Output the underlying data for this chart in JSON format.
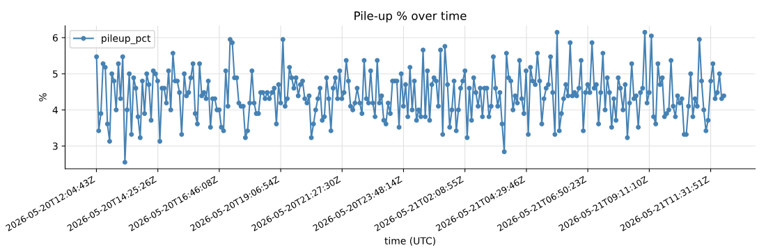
{
  "chart_data": {
    "type": "line",
    "title": "Pile-up % over time",
    "xlabel": "time (UTC)",
    "ylabel": "%",
    "x": [
      "2026-05-20T12:05",
      "2026-05-20T12:10",
      "2026-05-20T12:15",
      "2026-05-20T12:20",
      "2026-05-20T12:25",
      "2026-05-20T12:30",
      "2026-05-20T12:35",
      "2026-05-20T12:40",
      "2026-05-20T12:45",
      "2026-05-20T12:50",
      "2026-05-20T12:55",
      "2026-05-20T13:00",
      "2026-05-20T13:05",
      "2026-05-20T13:10",
      "2026-05-20T13:15",
      "2026-05-20T13:20",
      "2026-05-20T13:25",
      "2026-05-20T13:30",
      "2026-05-20T13:35",
      "2026-05-20T13:40",
      "2026-05-20T13:45",
      "2026-05-20T13:50",
      "2026-05-20T13:55",
      "2026-05-20T14:00",
      "2026-05-20T14:05",
      "2026-05-20T14:10",
      "2026-05-20T14:15",
      "2026-05-20T14:20",
      "2026-05-20T14:25",
      "2026-05-20T14:30",
      "2026-05-20T14:35",
      "2026-05-20T14:40",
      "2026-05-20T14:45",
      "2026-05-20T14:50",
      "2026-05-20T14:55",
      "2026-05-20T15:00",
      "2026-05-20T15:05",
      "2026-05-20T15:10",
      "2026-05-20T15:15",
      "2026-05-20T15:20",
      "2026-05-20T15:26",
      "2026-05-20T15:31",
      "2026-05-20T15:36",
      "2026-05-20T15:41",
      "2026-05-20T15:46",
      "2026-05-20T15:51",
      "2026-05-20T15:56",
      "2026-05-20T16:01",
      "2026-05-20T16:06",
      "2026-05-20T16:11",
      "2026-05-20T16:16",
      "2026-05-20T16:21",
      "2026-05-20T16:26",
      "2026-05-20T16:31",
      "2026-05-20T16:36",
      "2026-05-20T16:41",
      "2026-05-20T16:46",
      "2026-05-20T16:51",
      "2026-05-20T16:56",
      "2026-05-20T17:01",
      "2026-05-20T17:06",
      "2026-05-20T17:11",
      "2026-05-20T17:16",
      "2026-05-20T17:21",
      "2026-05-20T17:26",
      "2026-05-20T17:31",
      "2026-05-20T17:36",
      "2026-05-20T17:41",
      "2026-05-20T17:46",
      "2026-05-20T17:51",
      "2026-05-20T17:56",
      "2026-05-20T18:01",
      "2026-05-20T18:06",
      "2026-05-20T18:11",
      "2026-05-20T18:16",
      "2026-05-20T18:21",
      "2026-05-20T18:26",
      "2026-05-20T18:31",
      "2026-05-20T18:36",
      "2026-05-20T18:41",
      "2026-05-20T18:47",
      "2026-05-20T18:52",
      "2026-05-20T18:57",
      "2026-05-20T19:02",
      "2026-05-20T19:07",
      "2026-05-20T19:12",
      "2026-05-20T19:17",
      "2026-05-20T19:22",
      "2026-05-20T19:27",
      "2026-05-20T19:32",
      "2026-05-20T19:37",
      "2026-05-20T19:42",
      "2026-05-20T19:47",
      "2026-05-20T19:52",
      "2026-05-20T19:57",
      "2026-05-20T20:02",
      "2026-05-20T20:07",
      "2026-05-20T20:12",
      "2026-05-20T20:17",
      "2026-05-20T20:22",
      "2026-05-20T20:27",
      "2026-05-20T20:32",
      "2026-05-20T20:37",
      "2026-05-20T20:42",
      "2026-05-20T20:47",
      "2026-05-20T20:52",
      "2026-05-20T20:57",
      "2026-05-20T21:02",
      "2026-05-20T21:07",
      "2026-05-20T21:12",
      "2026-05-20T21:17",
      "2026-05-20T21:22",
      "2026-05-20T21:27",
      "2026-05-20T21:32",
      "2026-05-20T21:37",
      "2026-05-20T21:42",
      "2026-05-20T21:47",
      "2026-05-20T21:52",
      "2026-05-20T21:57",
      "2026-05-20T22:02",
      "2026-05-20T22:08",
      "2026-05-20T22:13",
      "2026-05-20T22:18",
      "2026-05-20T22:23",
      "2026-05-20T22:28",
      "2026-05-20T22:33",
      "2026-05-20T22:38",
      "2026-05-20T22:43",
      "2026-05-20T22:48",
      "2026-05-20T22:53",
      "2026-05-20T22:58",
      "2026-05-20T23:03",
      "2026-05-20T23:08",
      "2026-05-20T23:13",
      "2026-05-20T23:18",
      "2026-05-20T23:23",
      "2026-05-20T23:28",
      "2026-05-20T23:33",
      "2026-05-20T23:38",
      "2026-05-20T23:43",
      "2026-05-20T23:48",
      "2026-05-20T23:53",
      "2026-05-20T23:58",
      "2026-05-21T00:03",
      "2026-05-21T00:08",
      "2026-05-21T00:13",
      "2026-05-21T00:18",
      "2026-05-21T00:23",
      "2026-05-21T00:28",
      "2026-05-21T00:33",
      "2026-05-21T00:38",
      "2026-05-21T00:43",
      "2026-05-21T00:48",
      "2026-05-21T00:53",
      "2026-05-21T00:58",
      "2026-05-21T01:03",
      "2026-05-21T01:08",
      "2026-05-21T01:13",
      "2026-05-21T01:18",
      "2026-05-21T01:23",
      "2026-05-21T01:29",
      "2026-05-21T01:34",
      "2026-05-21T01:39",
      "2026-05-21T01:44",
      "2026-05-21T01:49",
      "2026-05-21T01:54",
      "2026-05-21T01:59",
      "2026-05-21T02:04",
      "2026-05-21T02:09",
      "2026-05-21T02:14",
      "2026-05-21T02:19",
      "2026-05-21T02:24",
      "2026-05-21T02:29",
      "2026-05-21T02:34",
      "2026-05-21T02:39",
      "2026-05-21T02:44",
      "2026-05-21T02:49",
      "2026-05-21T02:54",
      "2026-05-21T02:59",
      "2026-05-21T03:04",
      "2026-05-21T03:09",
      "2026-05-21T03:14",
      "2026-05-21T03:19",
      "2026-05-21T03:24",
      "2026-05-21T03:29",
      "2026-05-21T03:34",
      "2026-05-21T03:39",
      "2026-05-21T03:44",
      "2026-05-21T03:49",
      "2026-05-21T03:54",
      "2026-05-21T03:59",
      "2026-05-21T04:04",
      "2026-05-21T04:09",
      "2026-05-21T04:14",
      "2026-05-21T04:19",
      "2026-05-21T04:24",
      "2026-05-21T04:29",
      "2026-05-21T04:34",
      "2026-05-21T04:39",
      "2026-05-21T04:44",
      "2026-05-21T04:50",
      "2026-05-21T04:55",
      "2026-05-21T05:00",
      "2026-05-21T05:05",
      "2026-05-21T05:10",
      "2026-05-21T05:15",
      "2026-05-21T05:20",
      "2026-05-21T05:25",
      "2026-05-21T05:30",
      "2026-05-21T05:35",
      "2026-05-21T05:40",
      "2026-05-21T05:45",
      "2026-05-21T05:50",
      "2026-05-21T05:55",
      "2026-05-21T06:00",
      "2026-05-21T06:05",
      "2026-05-21T06:10",
      "2026-05-21T06:15",
      "2026-05-21T06:20",
      "2026-05-21T06:25",
      "2026-05-21T06:30",
      "2026-05-21T06:35",
      "2026-05-21T06:40",
      "2026-05-21T06:45",
      "2026-05-21T06:50",
      "2026-05-21T06:55",
      "2026-05-21T07:00",
      "2026-05-21T07:05",
      "2026-05-21T07:10",
      "2026-05-21T07:15",
      "2026-05-21T07:20",
      "2026-05-21T07:25",
      "2026-05-21T07:30",
      "2026-05-21T07:35",
      "2026-05-21T07:40",
      "2026-05-21T07:45",
      "2026-05-21T07:50",
      "2026-05-21T07:55",
      "2026-05-21T08:00",
      "2026-05-21T08:05",
      "2026-05-21T08:11",
      "2026-05-21T08:16",
      "2026-05-21T08:21",
      "2026-05-21T08:26",
      "2026-05-21T08:31",
      "2026-05-21T08:36",
      "2026-05-21T08:41",
      "2026-05-21T08:46",
      "2026-05-21T08:51",
      "2026-05-21T08:56",
      "2026-05-21T09:01",
      "2026-05-21T09:06",
      "2026-05-21T09:11",
      "2026-05-21T09:16",
      "2026-05-21T09:21",
      "2026-05-21T09:26",
      "2026-05-21T09:31",
      "2026-05-21T09:36",
      "2026-05-21T09:41",
      "2026-05-21T09:46",
      "2026-05-21T09:51",
      "2026-05-21T09:56",
      "2026-05-21T10:01",
      "2026-05-21T10:06",
      "2026-05-21T10:11",
      "2026-05-21T10:16",
      "2026-05-21T10:21",
      "2026-05-21T10:26",
      "2026-05-21T10:31",
      "2026-05-21T10:36",
      "2026-05-21T10:41",
      "2026-05-21T10:46",
      "2026-05-21T10:51",
      "2026-05-21T10:56",
      "2026-05-21T11:01",
      "2026-05-21T11:06",
      "2026-05-21T11:11",
      "2026-05-21T11:16",
      "2026-05-21T11:21",
      "2026-05-21T11:26",
      "2026-05-21T11:32",
      "2026-05-21T11:37",
      "2026-05-21T11:42",
      "2026-05-21T11:47",
      "2026-05-21T11:52",
      "2026-05-21T11:57",
      "2026-05-21T12:02"
    ],
    "series": [
      {
        "name": "pileup_pct",
        "color": "#4682b4",
        "values": [
          5.47,
          3.42,
          3.9,
          5.28,
          5.18,
          3.61,
          3.13,
          5.0,
          4.8,
          4.0,
          5.28,
          4.31,
          5.47,
          2.55,
          4.0,
          5.0,
          3.32,
          4.89,
          4.6,
          3.81,
          3.23,
          4.8,
          3.9,
          5.0,
          4.7,
          3.71,
          5.08,
          5.0,
          4.8,
          3.13,
          4.6,
          4.6,
          4.19,
          5.08,
          4.0,
          5.57,
          4.8,
          4.8,
          4.48,
          3.32,
          5.0,
          4.39,
          4.48,
          4.89,
          5.28,
          3.9,
          3.61,
          5.28,
          4.39,
          4.48,
          4.31,
          4.8,
          3.52,
          4.31,
          4.31,
          4.0,
          4.0,
          3.52,
          3.42,
          5.08,
          4.1,
          5.95,
          5.86,
          4.89,
          4.89,
          4.19,
          4.1,
          4.1,
          3.23,
          3.42,
          4.19,
          5.08,
          4.19,
          3.9,
          3.9,
          4.48,
          4.48,
          4.31,
          4.48,
          4.31,
          4.48,
          4.6,
          3.61,
          4.7,
          4.19,
          5.95,
          4.1,
          4.31,
          5.18,
          4.89,
          4.6,
          4.89,
          4.39,
          4.7,
          4.8,
          4.31,
          4.19,
          4.39,
          3.23,
          3.61,
          4.0,
          4.31,
          4.6,
          3.71,
          3.81,
          4.89,
          4.31,
          3.42,
          4.6,
          4.89,
          4.31,
          5.08,
          4.31,
          4.48,
          5.37,
          4.8,
          4.1,
          4.0,
          4.19,
          4.6,
          4.19,
          3.9,
          5.37,
          4.31,
          4.19,
          5.08,
          4.19,
          3.81,
          5.37,
          4.19,
          4.39,
          3.71,
          3.61,
          4.19,
          3.9,
          4.8,
          4.8,
          4.8,
          3.52,
          5.0,
          4.1,
          4.7,
          3.81,
          5.18,
          4.0,
          4.8,
          3.71,
          4.0,
          3.81,
          5.66,
          3.81,
          5.08,
          3.71,
          4.7,
          4.89,
          4.8,
          4.1,
          5.66,
          3.32,
          5.76,
          4.7,
          3.52,
          4.0,
          4.8,
          3.42,
          4.0,
          4.6,
          4.8,
          5.08,
          3.23,
          4.6,
          3.71,
          4.89,
          4.48,
          4.1,
          4.6,
          3.81,
          4.6,
          4.6,
          3.81,
          4.1,
          5.47,
          4.6,
          4.1,
          4.48,
          3.61,
          2.84,
          5.57,
          4.89,
          4.8,
          4.0,
          4.39,
          4.19,
          5.37,
          4.31,
          3.9,
          5.08,
          3.32,
          5.18,
          4.8,
          4.7,
          5.57,
          4.8,
          3.61,
          4.31,
          4.6,
          4.7,
          5.47,
          4.48,
          3.32,
          6.15,
          3.42,
          3.9,
          4.31,
          4.7,
          4.39,
          5.86,
          4.39,
          4.48,
          4.39,
          4.6,
          5.37,
          3.42,
          4.48,
          4.7,
          4.48,
          5.86,
          4.6,
          4.7,
          3.61,
          4.48,
          5.57,
          4.0,
          4.89,
          4.48,
          3.52,
          4.31,
          3.71,
          4.89,
          4.6,
          4.0,
          4.7,
          3.23,
          4.19,
          5.28,
          4.31,
          4.39,
          3.52,
          4.48,
          4.6,
          6.15,
          4.19,
          4.48,
          6.05,
          3.81,
          3.61,
          5.28,
          4.7,
          4.89,
          3.81,
          3.9,
          4.0,
          5.37,
          4.1,
          3.81,
          4.39,
          4.19,
          4.31,
          3.32,
          3.32,
          4.1,
          5.0,
          3.81,
          4.31,
          4.1,
          5.95,
          4.8,
          4.0,
          3.42,
          3.71,
          4.8,
          5.28,
          4.31,
          4.48,
          5.0,
          4.31,
          4.39
        ]
      }
    ],
    "xlim": [
      "2026-05-20T10:53",
      "2026-05-21T13:14"
    ],
    "xticks": [
      {
        "value": "2026-05-20T12:04:43",
        "label": "2026-05-20T12:04:43Z"
      },
      {
        "value": "2026-05-20T14:25:26",
        "label": "2026-05-20T14:25:26Z"
      },
      {
        "value": "2026-05-20T16:46:08",
        "label": "2026-05-20T16:46:08Z"
      },
      {
        "value": "2026-05-20T19:06:54",
        "label": "2026-05-20T19:06:54Z"
      },
      {
        "value": "2026-05-20T21:27:30",
        "label": "2026-05-20T21:27:30Z"
      },
      {
        "value": "2026-05-20T23:48:14",
        "label": "2026-05-20T23:48:14Z"
      },
      {
        "value": "2026-05-21T02:08:55",
        "label": "2026-05-21T02:08:55Z"
      },
      {
        "value": "2026-05-21T04:29:46",
        "label": "2026-05-21T04:29:46Z"
      },
      {
        "value": "2026-05-21T06:50:23",
        "label": "2026-05-21T06:50:23Z"
      },
      {
        "value": "2026-05-21T09:11:10",
        "label": "2026-05-21T09:11:10Z"
      },
      {
        "value": "2026-05-21T11:31:51",
        "label": "2026-05-21T11:31:51Z"
      }
    ],
    "ylim": [
      2.37,
      6.33
    ],
    "yticks": [
      3,
      4,
      5,
      6
    ],
    "grid": true,
    "legend": "top left",
    "marker": "circle",
    "line_style": "solid"
  }
}
